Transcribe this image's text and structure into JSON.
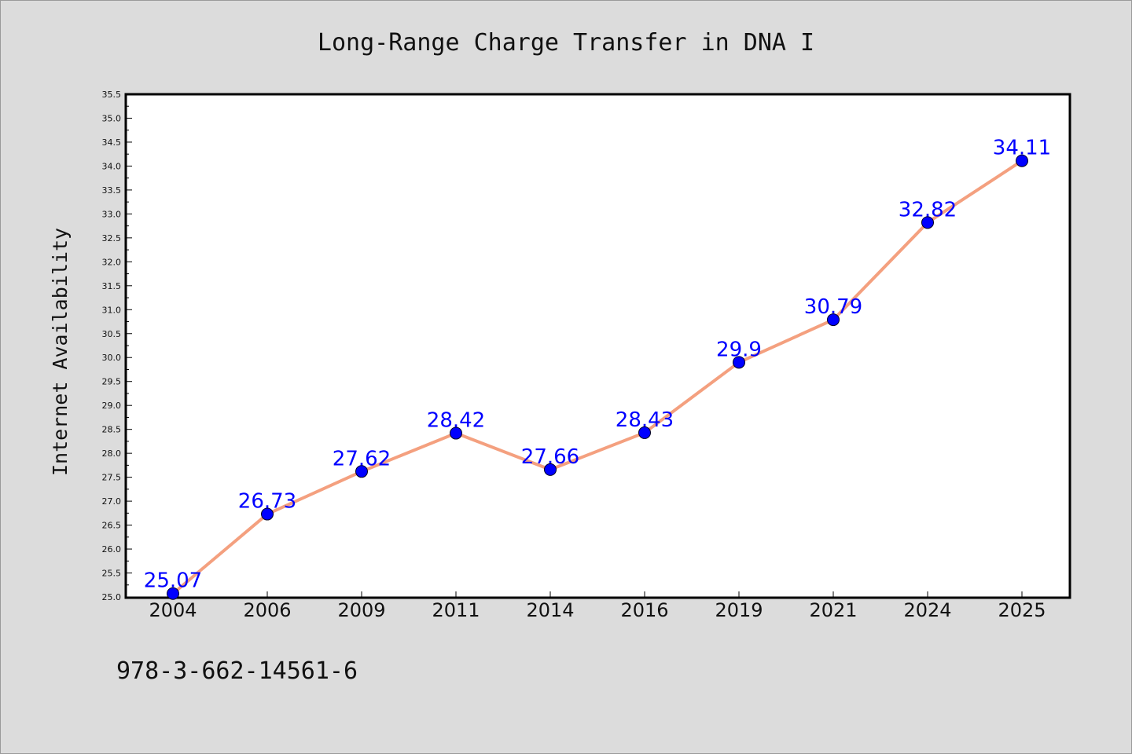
{
  "chart_data": {
    "type": "line",
    "title": "Long-Range Charge Transfer in DNA I",
    "xlabel": "",
    "ylabel": "Internet Availability",
    "categories": [
      "2004",
      "2006",
      "2009",
      "2011",
      "2014",
      "2016",
      "2019",
      "2021",
      "2024",
      "2025"
    ],
    "series": [
      {
        "values": [
          25.07,
          26.73,
          27.62,
          28.42,
          27.66,
          28.43,
          29.9,
          30.79,
          32.82,
          34.11
        ],
        "labels": [
          "25.07",
          "26.73",
          "27.62",
          "28.42",
          "27.66",
          "28.43",
          "29.9",
          "30.79",
          "32.82",
          "34.11"
        ],
        "line_color": "#f4a07f",
        "marker_color": "#0000ff"
      }
    ],
    "ylim": [
      25.0,
      35.5
    ],
    "yticks": [
      "25.0",
      "25.5",
      "26.0",
      "26.5",
      "27.0",
      "27.5",
      "28.0",
      "28.5",
      "29.0",
      "29.5",
      "30.0",
      "30.5",
      "31.0",
      "31.5",
      "32.0",
      "32.5",
      "33.0",
      "33.5",
      "34.0",
      "34.5",
      "35.0",
      "35.5"
    ],
    "grid": false,
    "legend": "none",
    "label_color": "#0000ff"
  },
  "footer": {
    "isbn": "978-3-662-14561-6"
  }
}
